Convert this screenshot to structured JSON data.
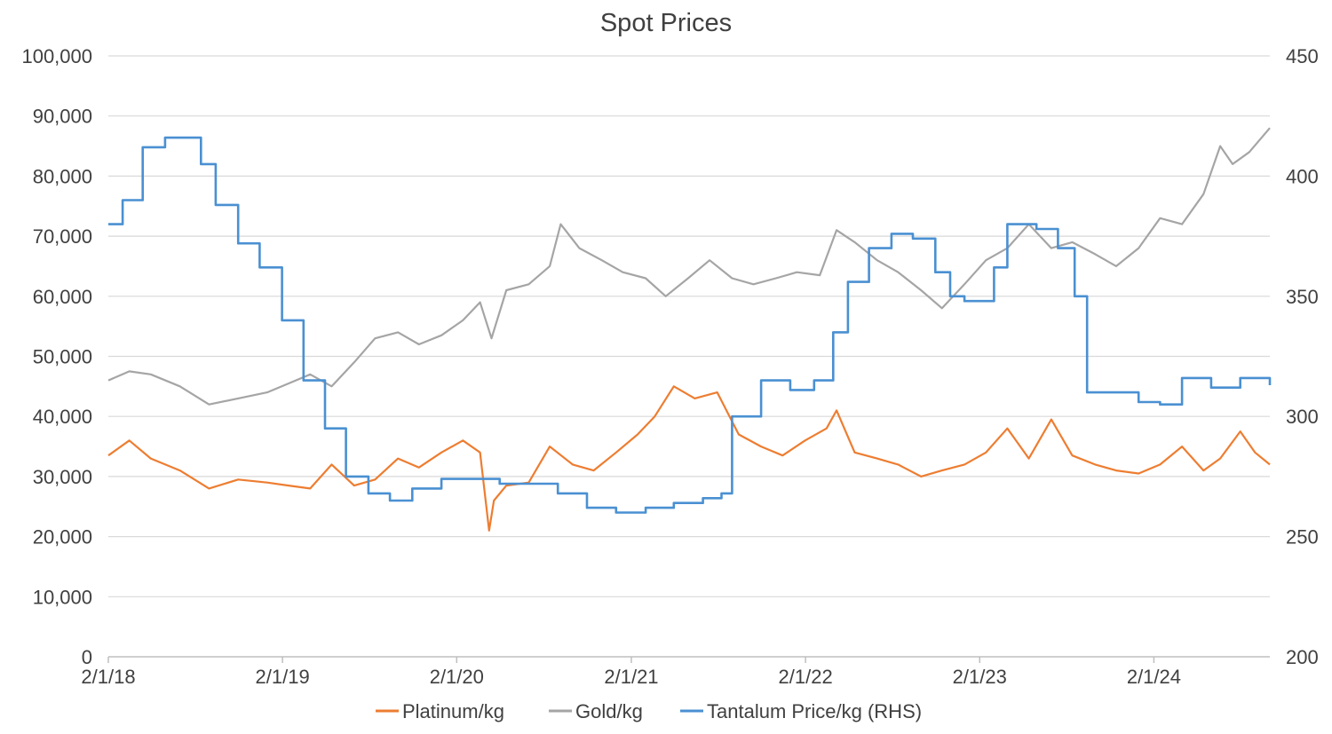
{
  "chart_data": {
    "type": "line",
    "title": "Spot Prices",
    "xlabel": "",
    "ylabel": "",
    "y2label": "",
    "xlim": [
      "2018-01-02",
      "2024-09-01"
    ],
    "ylim": [
      0,
      100000
    ],
    "y2lim": [
      200,
      450
    ],
    "grid": true,
    "legend_position": "bottom",
    "x_ticks": [
      {
        "date": "2018-01-02",
        "label": "2/1/18"
      },
      {
        "date": "2019-01-02",
        "label": "2/1/19"
      },
      {
        "date": "2020-01-02",
        "label": "2/1/20"
      },
      {
        "date": "2021-01-02",
        "label": "2/1/21"
      },
      {
        "date": "2022-01-02",
        "label": "2/1/22"
      },
      {
        "date": "2023-01-02",
        "label": "2/1/23"
      },
      {
        "date": "2024-01-02",
        "label": "2/1/24"
      }
    ],
    "y_ticks": [
      "0",
      "10,000",
      "20,000",
      "30,000",
      "40,000",
      "50,000",
      "60,000",
      "70,000",
      "80,000",
      "90,000",
      "100,000"
    ],
    "y2_ticks": [
      "200",
      "250",
      "300",
      "350",
      "400",
      "450"
    ],
    "series": [
      {
        "name": "Platinum/kg",
        "axis": "left",
        "color": "#ED7D31",
        "step": false,
        "x": [
          "2018-01-02",
          "2018-02-15",
          "2018-04-01",
          "2018-06-01",
          "2018-08-01",
          "2018-10-01",
          "2018-12-01",
          "2019-01-15",
          "2019-03-01",
          "2019-04-15",
          "2019-06-01",
          "2019-07-15",
          "2019-09-01",
          "2019-10-15",
          "2019-12-01",
          "2020-01-15",
          "2020-02-20",
          "2020-03-10",
          "2020-03-20",
          "2020-04-15",
          "2020-06-01",
          "2020-07-15",
          "2020-09-01",
          "2020-10-15",
          "2020-12-01",
          "2021-01-15",
          "2021-02-20",
          "2021-04-01",
          "2021-05-15",
          "2021-07-01",
          "2021-08-15",
          "2021-10-01",
          "2021-11-15",
          "2022-01-01",
          "2022-02-15",
          "2022-03-08",
          "2022-04-15",
          "2022-06-01",
          "2022-07-15",
          "2022-09-01",
          "2022-10-15",
          "2022-12-01",
          "2023-01-15",
          "2023-03-01",
          "2023-04-15",
          "2023-06-01",
          "2023-07-15",
          "2023-09-01",
          "2023-10-15",
          "2023-12-01",
          "2024-01-15",
          "2024-03-01",
          "2024-04-15",
          "2024-05-20",
          "2024-07-01",
          "2024-08-01",
          "2024-09-01"
        ],
        "y": [
          33500,
          36000,
          33000,
          31000,
          28000,
          29500,
          29000,
          28500,
          28000,
          32000,
          28500,
          29500,
          33000,
          31500,
          34000,
          36000,
          34000,
          21000,
          26000,
          28500,
          29000,
          35000,
          32000,
          31000,
          34000,
          37000,
          40000,
          45000,
          43000,
          44000,
          37000,
          35000,
          33500,
          36000,
          38000,
          41000,
          34000,
          33000,
          32000,
          30000,
          31000,
          32000,
          34000,
          38000,
          33000,
          39500,
          33500,
          32000,
          31000,
          30500,
          32000,
          35000,
          31000,
          33000,
          37500,
          34000,
          32000
        ]
      },
      {
        "name": "Gold/kg",
        "axis": "left",
        "color": "#A5A5A5",
        "step": false,
        "x": [
          "2018-01-02",
          "2018-02-15",
          "2018-04-01",
          "2018-06-01",
          "2018-08-01",
          "2018-10-01",
          "2018-12-01",
          "2019-01-15",
          "2019-03-01",
          "2019-04-15",
          "2019-06-01",
          "2019-07-15",
          "2019-09-01",
          "2019-10-15",
          "2019-12-01",
          "2020-01-15",
          "2020-02-20",
          "2020-03-15",
          "2020-04-15",
          "2020-06-01",
          "2020-07-15",
          "2020-08-07",
          "2020-09-15",
          "2020-11-01",
          "2020-12-15",
          "2021-02-01",
          "2021-03-15",
          "2021-05-01",
          "2021-06-15",
          "2021-08-01",
          "2021-09-15",
          "2021-11-01",
          "2021-12-15",
          "2022-02-01",
          "2022-03-08",
          "2022-04-15",
          "2022-06-01",
          "2022-07-15",
          "2022-09-01",
          "2022-10-15",
          "2022-12-01",
          "2023-01-15",
          "2023-03-01",
          "2023-04-15",
          "2023-06-01",
          "2023-07-15",
          "2023-09-01",
          "2023-10-15",
          "2023-12-01",
          "2024-01-15",
          "2024-03-01",
          "2024-04-15",
          "2024-05-20",
          "2024-06-15",
          "2024-07-20",
          "2024-09-01"
        ],
        "y": [
          46000,
          47500,
          47000,
          45000,
          42000,
          43000,
          44000,
          45500,
          47000,
          45000,
          49000,
          53000,
          54000,
          52000,
          53500,
          56000,
          59000,
          53000,
          61000,
          62000,
          65000,
          72000,
          68000,
          66000,
          64000,
          63000,
          60000,
          63000,
          66000,
          63000,
          62000,
          63000,
          64000,
          63500,
          71000,
          69000,
          66000,
          64000,
          61000,
          58000,
          62000,
          66000,
          68000,
          72000,
          68000,
          69000,
          67000,
          65000,
          68000,
          73000,
          72000,
          77000,
          85000,
          82000,
          84000,
          88000
        ]
      },
      {
        "name": "Tantalum Price/kg (RHS)",
        "axis": "right",
        "color": "#4A90D2",
        "step": true,
        "x": [
          "2018-01-02",
          "2018-02-01",
          "2018-03-15",
          "2018-05-01",
          "2018-07-15",
          "2018-08-15",
          "2018-10-01",
          "2018-11-15",
          "2019-01-01",
          "2019-02-15",
          "2019-04-01",
          "2019-05-15",
          "2019-07-01",
          "2019-08-15",
          "2019-10-01",
          "2019-12-01",
          "2020-02-01",
          "2020-04-01",
          "2020-06-01",
          "2020-08-01",
          "2020-10-01",
          "2020-12-01",
          "2021-02-01",
          "2021-04-01",
          "2021-06-01",
          "2021-07-10",
          "2021-08-01",
          "2021-10-01",
          "2021-12-01",
          "2022-01-20",
          "2022-03-01",
          "2022-04-01",
          "2022-05-15",
          "2022-07-01",
          "2022-08-15",
          "2022-10-01",
          "2022-11-01",
          "2022-12-01",
          "2023-02-01",
          "2023-03-01",
          "2023-05-01",
          "2023-06-15",
          "2023-07-20",
          "2023-08-15",
          "2023-10-01",
          "2023-12-01",
          "2024-01-15",
          "2024-03-01",
          "2024-05-01",
          "2024-07-01",
          "2024-09-01"
        ],
        "y": [
          380,
          390,
          412,
          416,
          405,
          388,
          372,
          362,
          340,
          315,
          295,
          275,
          268,
          265,
          270,
          274,
          274,
          272,
          272,
          268,
          262,
          260,
          262,
          264,
          266,
          268,
          300,
          315,
          311,
          315,
          335,
          356,
          370,
          376,
          374,
          360,
          350,
          348,
          362,
          380,
          378,
          370,
          350,
          310,
          310,
          306,
          305,
          316,
          312,
          316,
          313
        ]
      }
    ]
  }
}
